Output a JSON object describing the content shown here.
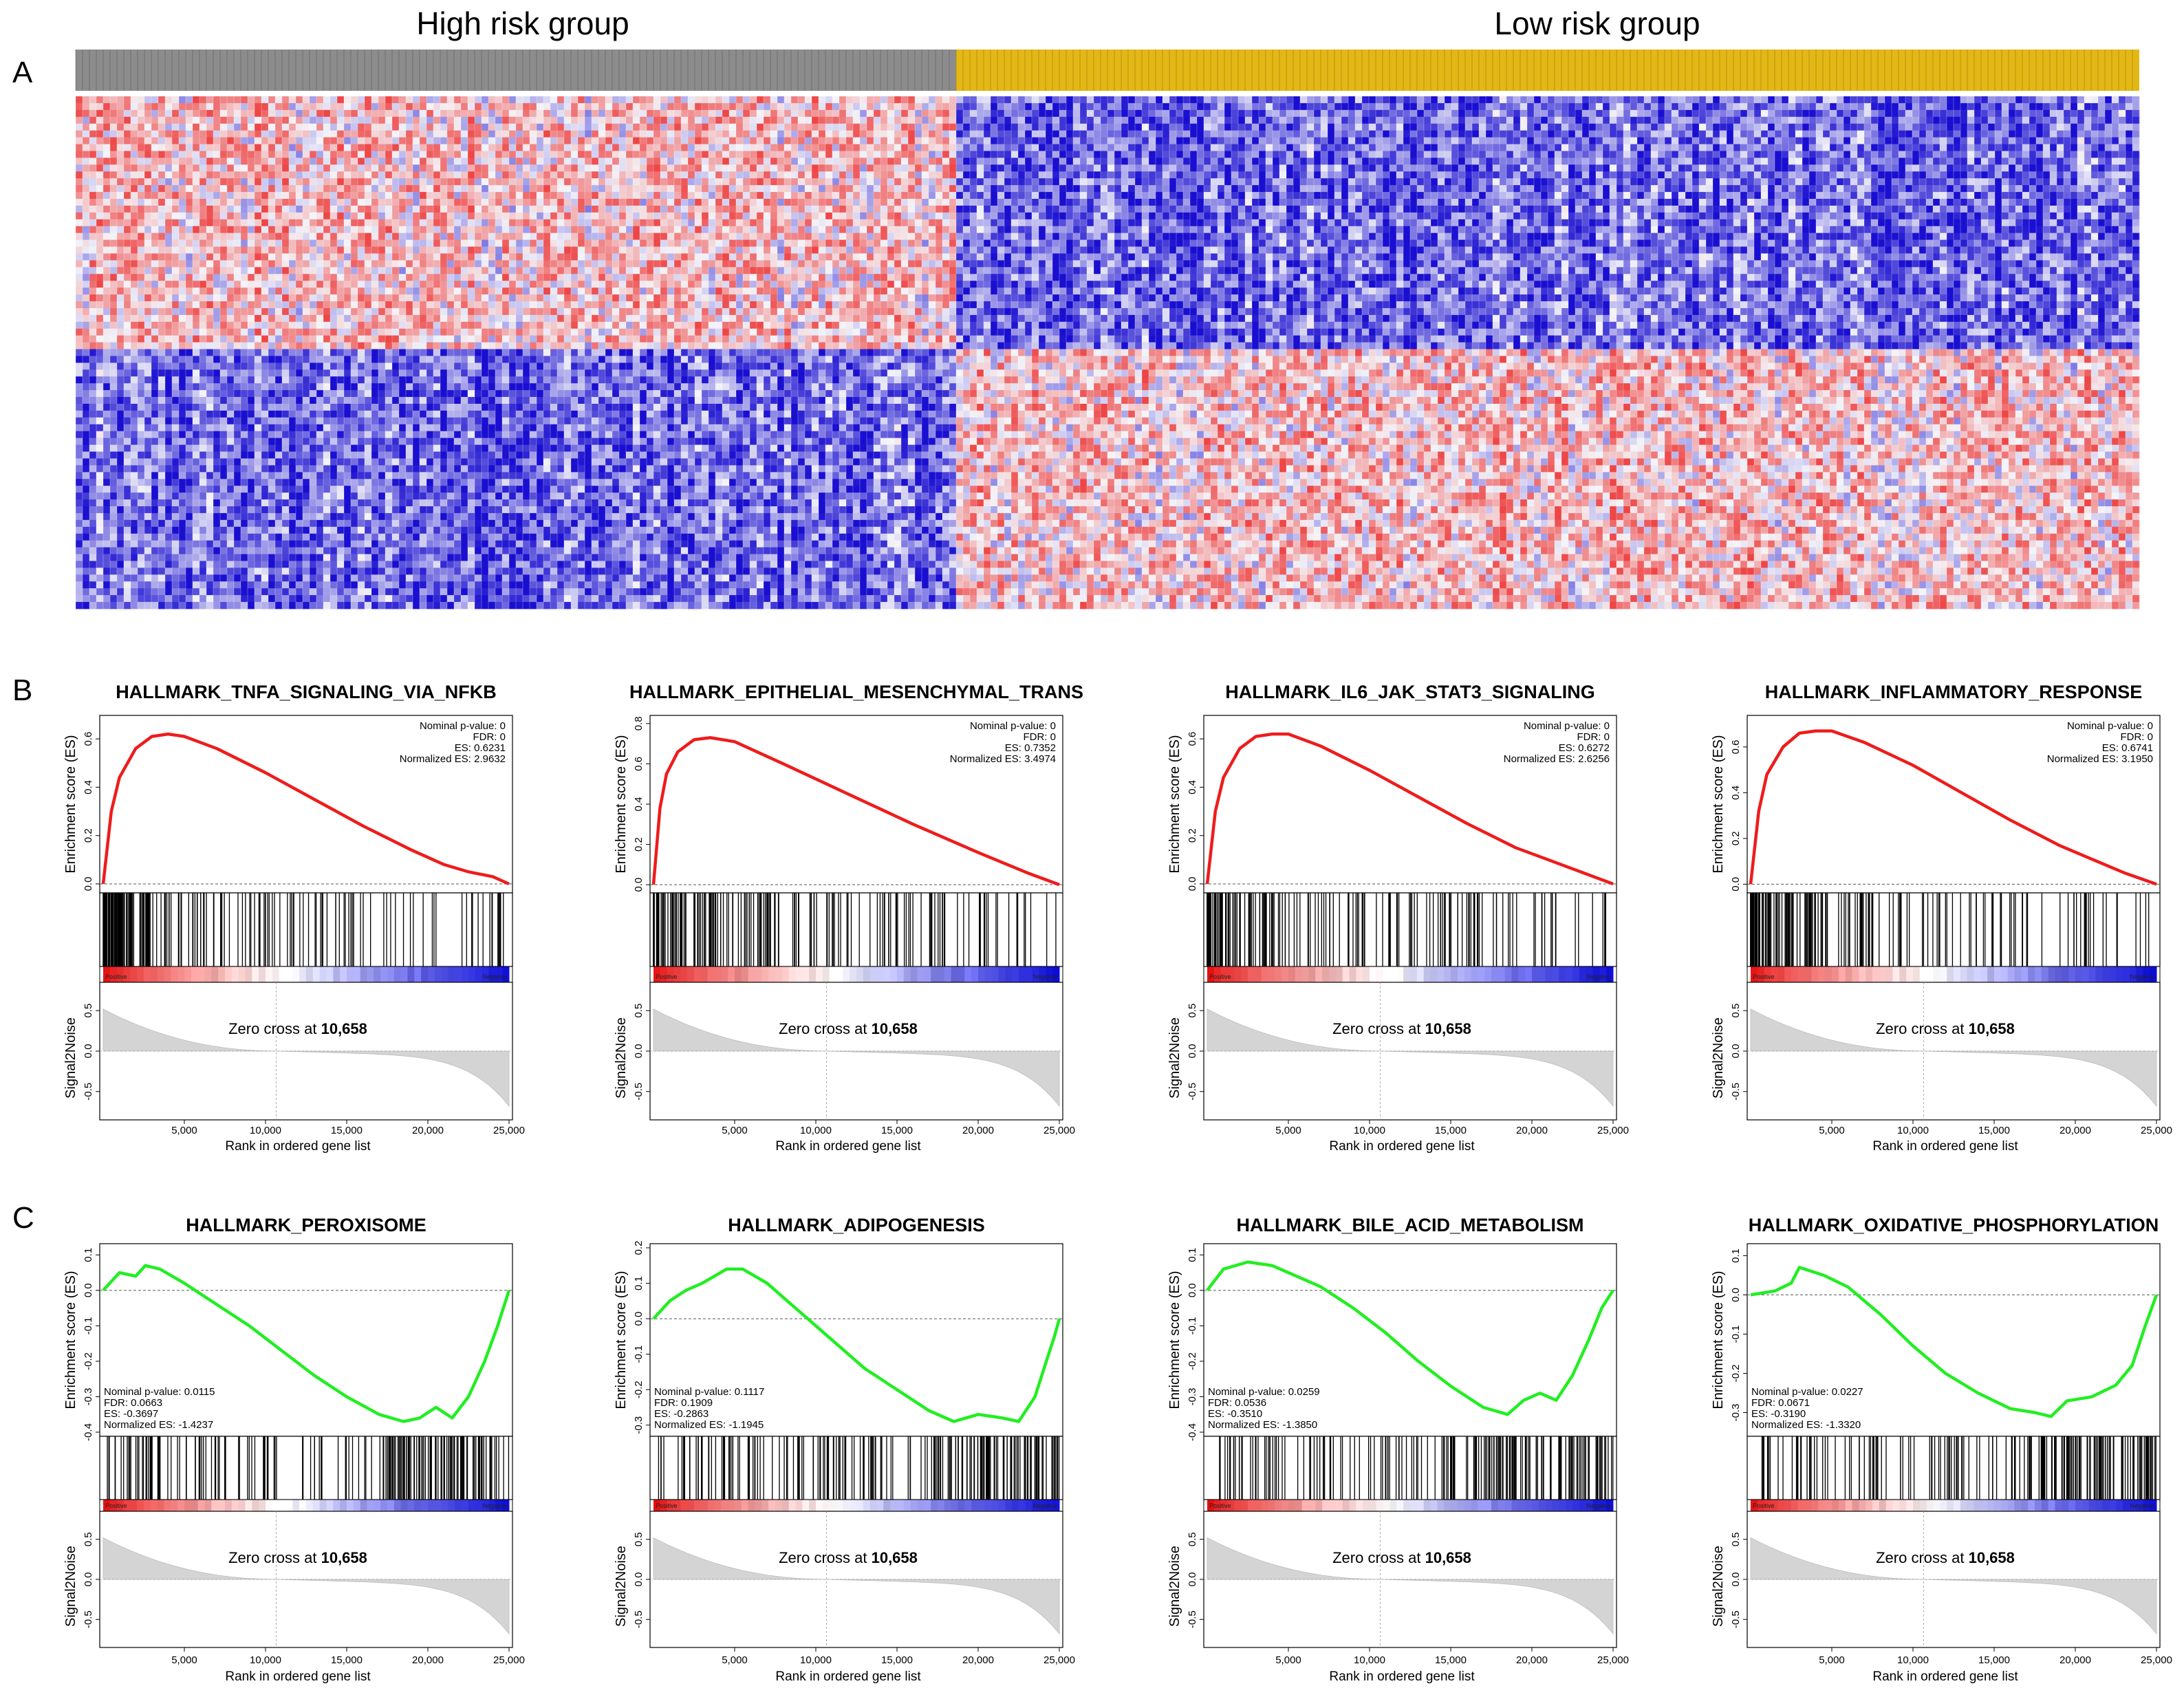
{
  "panel_labels": [
    "A",
    "B",
    "C"
  ],
  "heatmap": {
    "groups": [
      {
        "label": "High risk group",
        "color": "#8c8c8c"
      },
      {
        "label": "Low risk group",
        "color": "#e3b716"
      }
    ],
    "colors": {
      "low": "#1a0fd0",
      "mid": "#f4f4f8",
      "high": "#ee4646"
    }
  },
  "gsea_common": {
    "es_ylabel": "Enrichment score (ES)",
    "s2n_ylabel": "Signal2Noise",
    "xlabel": "Rank in ordered gene list",
    "zero_cross_prefix": "Zero cross at ",
    "zero_cross_value": "10,658",
    "positive_label": "Positive",
    "negative_label": "Negative",
    "x_ticks": [
      "5,000",
      "10,000",
      "15,000",
      "20,000",
      "25,000"
    ],
    "s2n_ticks": [
      "0.5",
      "0.0",
      "-0.5"
    ],
    "colors": {
      "positive_curve": "#ee1c1c",
      "negative_curve": "#22ee22",
      "ranked_fill": "#d4d4d4"
    }
  },
  "chart_data": [
    {
      "type": "line",
      "panel": "B",
      "title": "HALLMARK_TNFA_SIGNALING_VIA_NFKB",
      "ylim": [
        -0.02,
        0.68
      ],
      "y_ticks": [
        "0.0",
        "0.2",
        "0.4",
        "0.6"
      ],
      "x": [
        0,
        500,
        1000,
        2000,
        3000,
        4000,
        5000,
        7000,
        10000,
        13000,
        16000,
        19000,
        21000,
        22500,
        24000,
        25000
      ],
      "y": [
        0,
        0.3,
        0.44,
        0.56,
        0.61,
        0.62,
        0.61,
        0.56,
        0.46,
        0.35,
        0.24,
        0.14,
        0.08,
        0.05,
        0.03,
        0
      ],
      "stats": [
        "Nominal p-value: 0",
        "FDR: 0",
        "ES: 0.6231",
        "Normalized ES: 2.9632"
      ]
    },
    {
      "type": "line",
      "panel": "B",
      "title": "HALLMARK_EPITHELIAL_MESENCHYMAL_TRANS",
      "ylim": [
        -0.02,
        0.82
      ],
      "y_ticks": [
        "0.0",
        "0.2",
        "0.4",
        "0.6",
        "0.8"
      ],
      "x": [
        0,
        400,
        800,
        1500,
        2500,
        3500,
        5000,
        8000,
        12000,
        16000,
        20000,
        23000,
        25000
      ],
      "y": [
        0,
        0.38,
        0.55,
        0.66,
        0.72,
        0.73,
        0.71,
        0.6,
        0.45,
        0.3,
        0.16,
        0.06,
        0
      ],
      "stats": [
        "Nominal p-value: 0",
        "FDR: 0",
        "ES: 0.7352",
        "Normalized ES: 3.4974"
      ]
    },
    {
      "type": "line",
      "panel": "B",
      "title": "HALLMARK_IL6_JAK_STAT3_SIGNALING",
      "ylim": [
        -0.02,
        0.68
      ],
      "y_ticks": [
        "0.0",
        "0.2",
        "0.4",
        "0.6"
      ],
      "x": [
        0,
        500,
        1000,
        2000,
        3000,
        4000,
        5000,
        7000,
        10000,
        13000,
        16000,
        19000,
        21000,
        23000,
        25000
      ],
      "y": [
        0,
        0.3,
        0.44,
        0.56,
        0.61,
        0.62,
        0.62,
        0.57,
        0.47,
        0.36,
        0.25,
        0.15,
        0.1,
        0.05,
        0
      ],
      "stats": [
        "Nominal p-value: 0",
        "FDR: 0",
        "ES: 0.6272",
        "Normalized ES: 2.6256"
      ]
    },
    {
      "type": "line",
      "panel": "B",
      "title": "HALLMARK_INFLAMMATORY_RESPONSE",
      "ylim": [
        -0.02,
        0.72
      ],
      "y_ticks": [
        "0.0",
        "0.2",
        "0.4",
        "0.6"
      ],
      "x": [
        0,
        500,
        1000,
        2000,
        3000,
        4000,
        5000,
        7000,
        10000,
        13000,
        16000,
        19000,
        21000,
        23000,
        25000
      ],
      "y": [
        0,
        0.32,
        0.48,
        0.6,
        0.66,
        0.67,
        0.67,
        0.62,
        0.52,
        0.4,
        0.28,
        0.17,
        0.11,
        0.05,
        0
      ],
      "stats": [
        "Nominal p-value: 0",
        "FDR: 0",
        "ES: 0.6741",
        "Normalized ES: 3.1950"
      ]
    },
    {
      "type": "line",
      "panel": "C",
      "title": "HALLMARK_PEROXISOME",
      "ylim": [
        -0.4,
        0.12
      ],
      "y_ticks": [
        "0.1",
        "0.0",
        "-0.1",
        "-0.2",
        "-0.3",
        "-0.4"
      ],
      "x": [
        0,
        1000,
        2000,
        2600,
        3500,
        5000,
        7000,
        9000,
        11000,
        13000,
        15000,
        17000,
        18500,
        19500,
        20500,
        21500,
        22500,
        23500,
        24300,
        25000
      ],
      "y": [
        0,
        0.05,
        0.04,
        0.07,
        0.06,
        0.02,
        -0.04,
        -0.1,
        -0.17,
        -0.24,
        -0.3,
        -0.35,
        -0.37,
        -0.36,
        -0.33,
        -0.36,
        -0.3,
        -0.2,
        -0.1,
        0
      ],
      "stats": [
        "Nominal p-value: 0.0115",
        "FDR: 0.0663",
        "ES: -0.3697",
        "Normalized ES: -1.4237"
      ]
    },
    {
      "type": "line",
      "panel": "C",
      "title": "HALLMARK_ADIPOGENESIS",
      "ylim": [
        -0.32,
        0.2
      ],
      "y_ticks": [
        "0.2",
        "0.1",
        "0.0",
        "-0.1",
        "-0.2",
        "-0.3"
      ],
      "x": [
        0,
        1000,
        2000,
        3000,
        4500,
        5500,
        7000,
        9000,
        11000,
        13000,
        15000,
        17000,
        18500,
        20000,
        21500,
        22500,
        23500,
        24200,
        24700,
        25000
      ],
      "y": [
        0,
        0.05,
        0.08,
        0.1,
        0.14,
        0.14,
        0.1,
        0.02,
        -0.06,
        -0.14,
        -0.2,
        -0.26,
        -0.29,
        -0.27,
        -0.28,
        -0.29,
        -0.22,
        -0.12,
        -0.05,
        0
      ],
      "stats": [
        "Nominal p-value: 0.1117",
        "FDR: 0.1909",
        "ES: -0.2863",
        "Normalized ES: -1.1945"
      ]
    },
    {
      "type": "line",
      "panel": "C",
      "title": "HALLMARK_BILE_ACID_METABOLISM",
      "ylim": [
        -0.4,
        0.12
      ],
      "y_ticks": [
        "0.1",
        "0.0",
        "-0.1",
        "-0.2",
        "-0.3",
        "-0.4"
      ],
      "x": [
        0,
        1000,
        2500,
        4000,
        5500,
        7000,
        9000,
        11000,
        13000,
        15000,
        17000,
        18500,
        19500,
        20500,
        21500,
        22500,
        23500,
        24300,
        25000
      ],
      "y": [
        0,
        0.06,
        0.08,
        0.07,
        0.04,
        0.01,
        -0.05,
        -0.12,
        -0.2,
        -0.27,
        -0.33,
        -0.35,
        -0.31,
        -0.29,
        -0.31,
        -0.24,
        -0.14,
        -0.05,
        0
      ],
      "stats": [
        "Nominal p-value: 0.0259",
        "FDR: 0.0536",
        "ES: -0.3510",
        "Normalized ES: -1.3850"
      ]
    },
    {
      "type": "line",
      "panel": "C",
      "title": "HALLMARK_OXIDATIVE_PHOSPHORYLATION",
      "ylim": [
        -0.35,
        0.12
      ],
      "y_ticks": [
        "0.1",
        "0.0",
        "-0.1",
        "-0.2",
        "-0.3"
      ],
      "x": [
        0,
        1500,
        2500,
        3000,
        4500,
        6000,
        8000,
        10000,
        12000,
        14000,
        16000,
        17500,
        18500,
        19500,
        21000,
        22500,
        23500,
        24300,
        25000
      ],
      "y": [
        0,
        0.01,
        0.03,
        0.07,
        0.05,
        0.02,
        -0.05,
        -0.13,
        -0.2,
        -0.25,
        -0.29,
        -0.3,
        -0.31,
        -0.27,
        -0.26,
        -0.23,
        -0.18,
        -0.08,
        0
      ],
      "stats": [
        "Nominal p-value: 0.0227",
        "FDR: 0.0671",
        "ES: -0.3190",
        "Normalized ES: -1.3320"
      ]
    }
  ]
}
